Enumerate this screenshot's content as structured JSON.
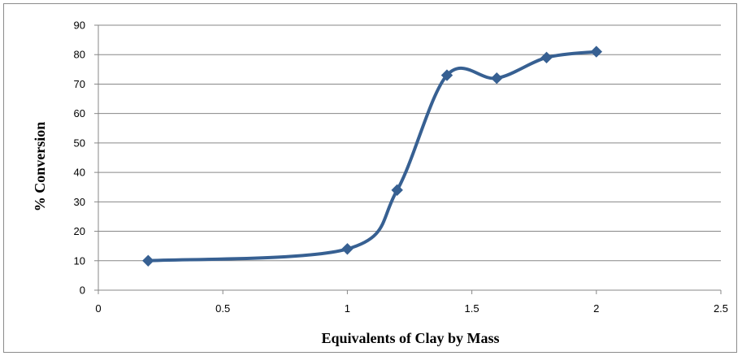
{
  "chart_data": {
    "type": "line",
    "title": "",
    "xlabel": "Equivalents of Clay by Mass",
    "ylabel": "% Conversion",
    "xlim": [
      0,
      2.5
    ],
    "ylim": [
      0,
      90
    ],
    "x_ticks": [
      "0",
      "0.5",
      "1",
      "1.5",
      "2",
      "2.5"
    ],
    "y_ticks": [
      "0",
      "10",
      "20",
      "30",
      "40",
      "50",
      "60",
      "70",
      "80",
      "90"
    ],
    "grid": "horizontal",
    "legend": "none",
    "smooth": true,
    "series": [
      {
        "x": [
          0.2,
          1.0,
          1.2,
          1.4,
          1.6,
          1.8,
          2.0
        ],
        "y": [
          10,
          14,
          34,
          73,
          72,
          79,
          81
        ],
        "color": "#376092",
        "marker": "diamond"
      }
    ]
  }
}
